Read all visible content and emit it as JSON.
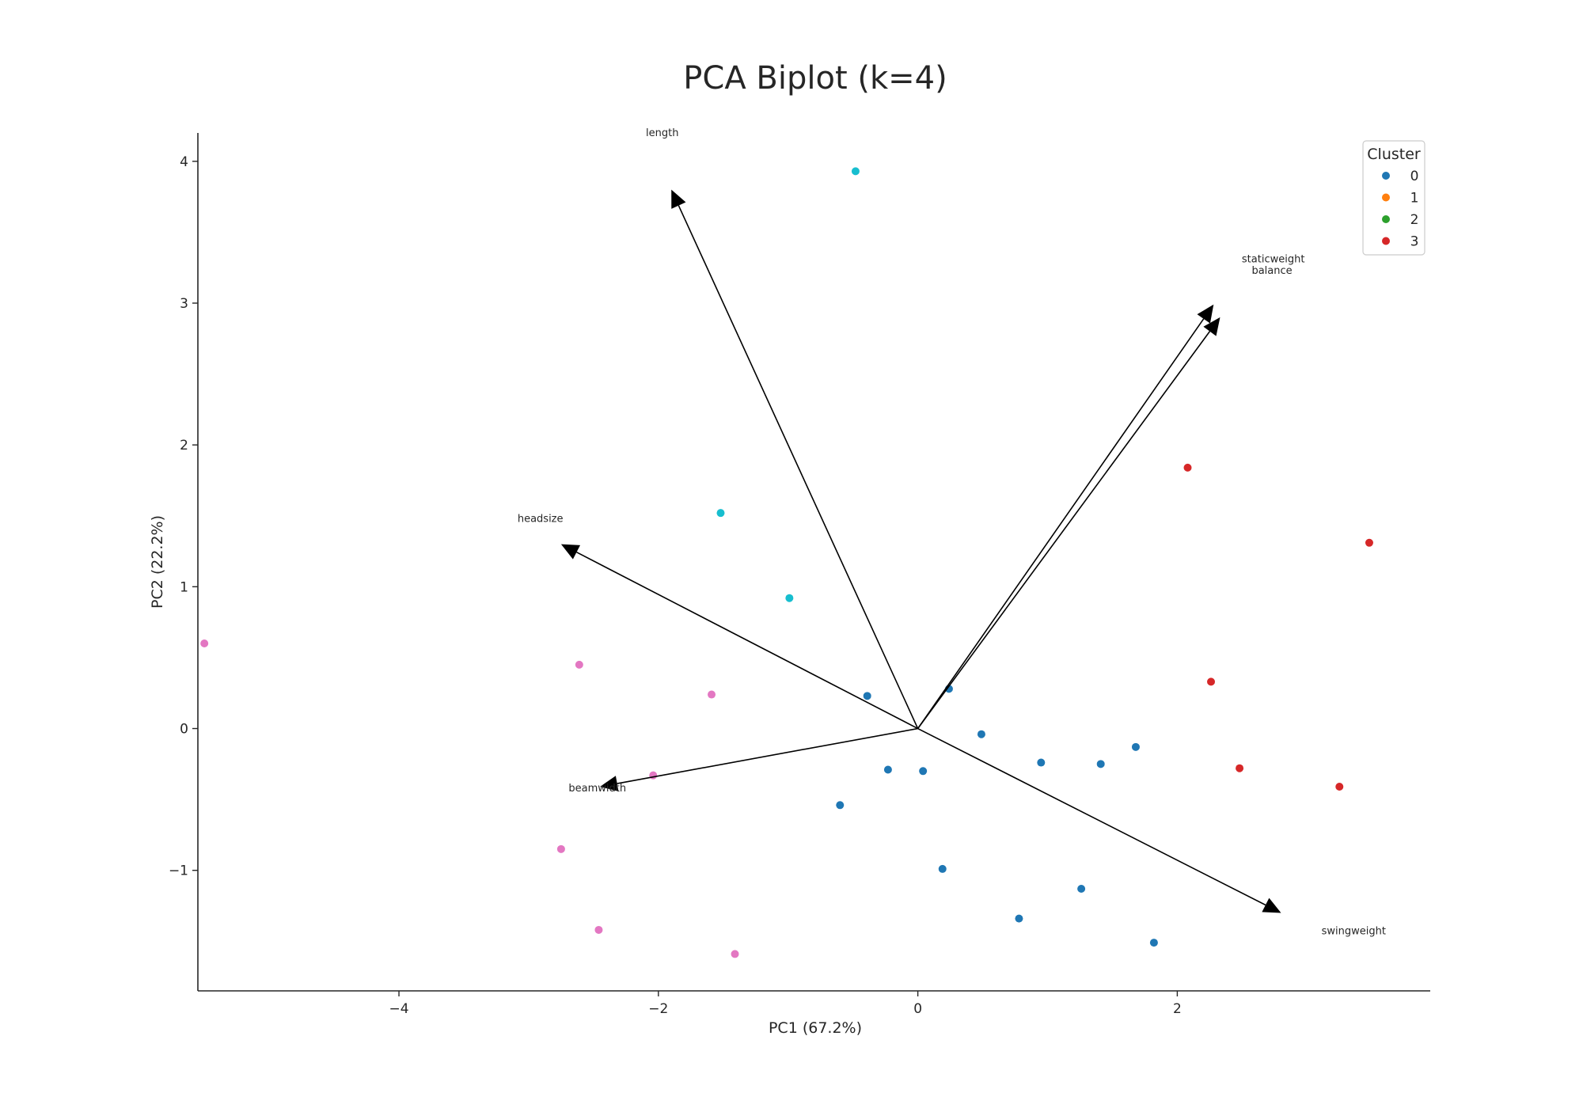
{
  "chart_data": {
    "type": "scatter",
    "title": "PCA Biplot (k=4)",
    "xlabel": "PC1 (67.2%)",
    "ylabel": "PC2 (22.2%)",
    "xlim": [
      -5.55,
      3.95
    ],
    "ylim": [
      -1.85,
      4.2
    ],
    "x_ticks": [
      -4,
      -2,
      0,
      2
    ],
    "y_ticks": [
      -1,
      0,
      1,
      2,
      3,
      4
    ],
    "tick_format": "unicode-minus",
    "grid": false,
    "legend": {
      "title": "Cluster",
      "placement": "top-right",
      "entries": [
        {
          "label": "0",
          "color": "#1f77b4"
        },
        {
          "label": "1",
          "color": "#ff7f0e"
        },
        {
          "label": "2",
          "color": "#2ca02c"
        },
        {
          "label": "3",
          "color": "#d62728"
        }
      ]
    },
    "series": [
      {
        "name": "0",
        "color": "#1f77b4",
        "points": [
          [
            -0.39,
            0.23
          ],
          [
            0.24,
            0.28
          ],
          [
            0.49,
            -0.04
          ],
          [
            0.95,
            -0.24
          ],
          [
            1.41,
            -0.25
          ],
          [
            1.68,
            -0.13
          ],
          [
            -0.23,
            -0.29
          ],
          [
            0.04,
            -0.3
          ],
          [
            -0.6,
            -0.54
          ],
          [
            0.19,
            -0.99
          ],
          [
            1.26,
            -1.13
          ],
          [
            0.78,
            -1.34
          ],
          [
            1.82,
            -1.51
          ]
        ]
      },
      {
        "name": "3",
        "color": "#d62728",
        "points": [
          [
            2.08,
            1.84
          ],
          [
            3.48,
            1.31
          ],
          [
            2.26,
            0.33
          ],
          [
            2.48,
            -0.28
          ],
          [
            3.25,
            -0.41
          ]
        ]
      },
      {
        "color": "#17becf",
        "points": [
          [
            -0.48,
            3.93
          ],
          [
            -1.52,
            1.52
          ],
          [
            -0.99,
            0.92
          ]
        ]
      },
      {
        "color": "#e377c2",
        "points": [
          [
            -5.5,
            0.6
          ],
          [
            -2.61,
            0.45
          ],
          [
            -1.59,
            0.24
          ],
          [
            -2.04,
            -0.33
          ],
          [
            -2.75,
            -0.85
          ],
          [
            -2.46,
            -1.42
          ],
          [
            -1.41,
            -1.59
          ]
        ]
      }
    ],
    "loadings": [
      {
        "name": "length",
        "x": -1.9,
        "y": 3.8,
        "label_x": -1.97,
        "label_y": 4.2
      },
      {
        "name": "staticweight",
        "x": 2.28,
        "y": 2.99,
        "label_x": 2.74,
        "label_y": 3.31
      },
      {
        "name": "balance",
        "x": 2.33,
        "y": 2.9,
        "label_x": 2.73,
        "label_y": 3.23
      },
      {
        "name": "headsize",
        "x": -2.75,
        "y": 1.3,
        "label_x": -2.91,
        "label_y": 1.48
      },
      {
        "name": "beamwidth",
        "x": -2.45,
        "y": -0.41,
        "label_x": -2.47,
        "label_y": -0.42
      },
      {
        "name": "swingweight",
        "x": 2.8,
        "y": -1.3,
        "label_x": 3.36,
        "label_y": -1.43
      }
    ]
  }
}
